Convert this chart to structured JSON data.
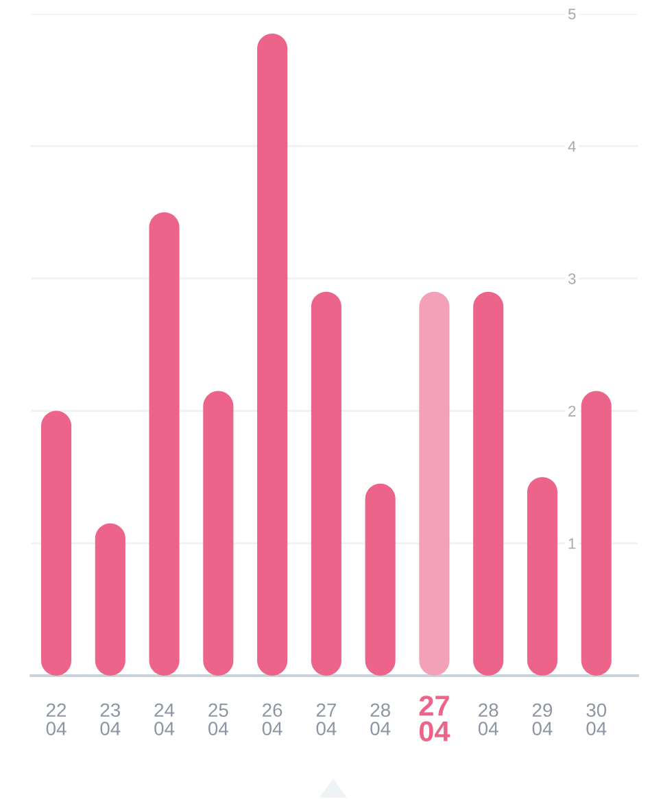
{
  "chart_data": {
    "type": "bar",
    "categories": [
      "22\n04",
      "23\n04",
      "24\n04",
      "25\n04",
      "26\n04",
      "27\n04",
      "28\n04",
      "27\n04",
      "28\n04",
      "29\n04",
      "30\n04"
    ],
    "values": [
      2.0,
      1.15,
      3.5,
      2.15,
      4.85,
      2.9,
      1.45,
      2.9,
      2.9,
      1.5,
      2.15
    ],
    "colors": [
      "#ec6489",
      "#ec6489",
      "#ec6489",
      "#ec6489",
      "#ec6489",
      "#ec6489",
      "#ec6489",
      "#f2a1b9",
      "#ec6489",
      "#ec6489",
      "#ec6489"
    ],
    "ylim": [
      0,
      5
    ],
    "yticks": [
      1,
      2,
      3,
      4,
      5
    ],
    "grid": "y"
  }
}
